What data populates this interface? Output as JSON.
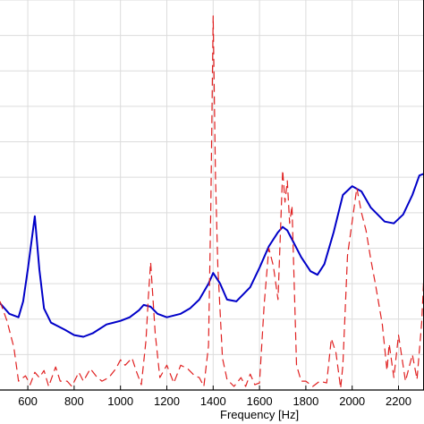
{
  "chart_data": {
    "type": "line",
    "xlabel": "Frequency [Hz]",
    "ylabel": "",
    "xlim": [
      480,
      2310
    ],
    "ylim": [
      0,
      11
    ],
    "x_ticks": [
      600,
      800,
      1000,
      1200,
      1400,
      1600,
      1800,
      2000,
      2200
    ],
    "x_tick_labels": [
      "600",
      "800",
      "1000",
      "1200",
      "1400",
      "1600",
      "1800",
      "2000",
      "2200"
    ],
    "y_gridlines": [
      1,
      2,
      3,
      4,
      5,
      6,
      7,
      8,
      9,
      10,
      11
    ],
    "grid": true,
    "colors": {
      "solid": "#0000c8",
      "dashed": "#e02020",
      "grid": "#dcdcdc",
      "axis": "#000000"
    },
    "series": [
      {
        "style": "solid",
        "x": [
          480,
          520,
          560,
          580,
          600,
          630,
          650,
          670,
          700,
          760,
          800,
          840,
          880,
          940,
          1000,
          1040,
          1080,
          1100,
          1130,
          1160,
          1200,
          1260,
          1300,
          1340,
          1380,
          1400,
          1430,
          1460,
          1500,
          1560,
          1600,
          1640,
          1680,
          1700,
          1720,
          1740,
          1780,
          1820,
          1850,
          1880,
          1920,
          1960,
          2000,
          2040,
          2080,
          2140,
          2180,
          2220,
          2260,
          2290,
          2310
        ],
        "y": [
          2.45,
          2.15,
          2.05,
          2.5,
          3.4,
          4.9,
          3.4,
          2.3,
          1.9,
          1.7,
          1.55,
          1.5,
          1.6,
          1.85,
          1.95,
          2.05,
          2.25,
          2.4,
          2.35,
          2.15,
          2.05,
          2.15,
          2.3,
          2.55,
          3.0,
          3.3,
          3.0,
          2.55,
          2.5,
          2.9,
          3.45,
          4.05,
          4.45,
          4.6,
          4.5,
          4.25,
          3.75,
          3.35,
          3.25,
          3.55,
          4.45,
          5.5,
          5.75,
          5.6,
          5.15,
          4.75,
          4.7,
          4.95,
          5.5,
          6.05,
          6.1
        ]
      },
      {
        "style": "dashed",
        "x": [
          480,
          510,
          540,
          560,
          590,
          610,
          630,
          650,
          670,
          690,
          720,
          740,
          770,
          790,
          820,
          840,
          870,
          900,
          920,
          950,
          980,
          1000,
          1020,
          1050,
          1070,
          1090,
          1110,
          1120,
          1130,
          1150,
          1170,
          1200,
          1230,
          1260,
          1290,
          1320,
          1340,
          1360,
          1380,
          1390,
          1400,
          1410,
          1420,
          1440,
          1460,
          1490,
          1520,
          1540,
          1560,
          1580,
          1600,
          1620,
          1640,
          1660,
          1680,
          1700,
          1710,
          1720,
          1730,
          1740,
          1760,
          1780,
          1800,
          1830,
          1860,
          1890,
          1910,
          1930,
          1950,
          1960,
          1980,
          2000,
          2020,
          2040,
          2060,
          2080,
          2100,
          2130,
          2150,
          2160,
          2180,
          2200,
          2230,
          2260,
          2280,
          2300,
          2310
        ],
        "y": [
          2.5,
          1.95,
          1.2,
          0.25,
          0.4,
          0.15,
          0.5,
          0.35,
          0.55,
          0.1,
          0.65,
          0.25,
          0.25,
          0.1,
          0.5,
          0.25,
          0.6,
          0.35,
          0.25,
          0.35,
          0.6,
          0.85,
          0.7,
          0.9,
          0.5,
          0.15,
          1.4,
          2.6,
          3.6,
          1.6,
          0.35,
          0.7,
          0.2,
          0.7,
          0.6,
          0.4,
          0.35,
          0.1,
          1.25,
          5.2,
          10.55,
          6.0,
          3.5,
          0.9,
          0.3,
          0.1,
          0.35,
          0.1,
          0.45,
          0.15,
          0.2,
          2.4,
          4.0,
          3.5,
          2.55,
          6.2,
          5.3,
          5.9,
          4.7,
          5.2,
          0.7,
          0.25,
          0.25,
          0.1,
          0.25,
          0.2,
          1.45,
          1.05,
          0.05,
          0.7,
          3.8,
          4.75,
          5.7,
          5.0,
          4.5,
          3.7,
          3.0,
          1.85,
          0.55,
          1.3,
          0.35,
          1.55,
          0.25,
          1.0,
          0.3,
          1.9,
          3.3
        ]
      }
    ]
  }
}
